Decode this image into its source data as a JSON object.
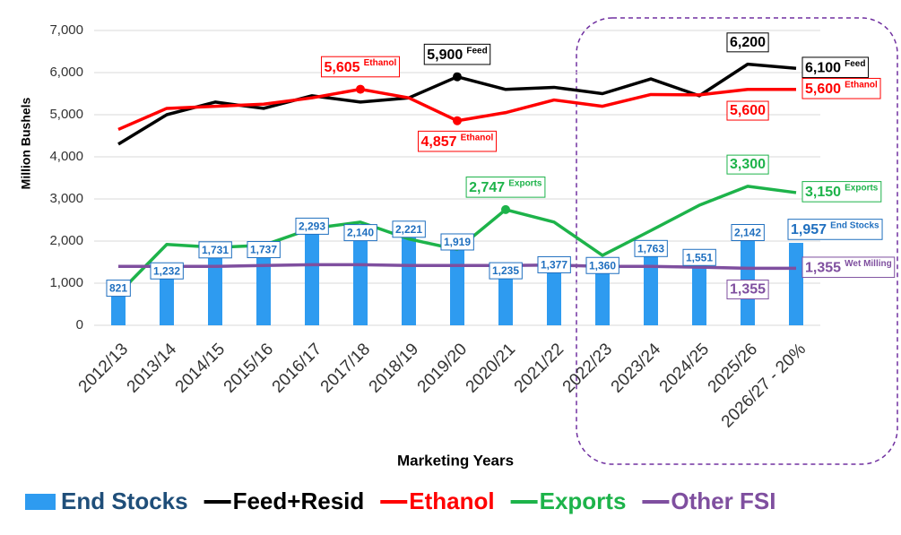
{
  "chart_data": {
    "type": "bar",
    "categories": [
      "2012/13",
      "2013/14",
      "2014/15",
      "2015/16",
      "2016/17",
      "2017/18",
      "2018/19",
      "2019/20",
      "2020/21",
      "2021/22",
      "2022/23",
      "2023/24",
      "2024/25",
      "2025/26",
      "2026/27 - 20%"
    ],
    "x_label": "Marketing Years",
    "y_label": "Million Bushels",
    "ylim": [
      0,
      7000
    ],
    "yticks": [
      0,
      {
        "value": 1000,
        "label": "1,000"
      },
      {
        "value": 2000,
        "label": "2,000"
      },
      {
        "value": 3000,
        "label": "3,000"
      },
      {
        "value": 4000,
        "label": "4,000"
      },
      {
        "value": 5000,
        "label": "5,000"
      },
      {
        "value": 6000,
        "label": "6,000"
      },
      {
        "value": 7000,
        "label": "7,000"
      }
    ],
    "grid": true,
    "series": [
      {
        "name": "End Stocks",
        "type": "bar",
        "color": "#2e9bf0",
        "values": [
          821,
          1232,
          1731,
          1737,
          2293,
          2140,
          2221,
          1919,
          1235,
          1377,
          1360,
          1763,
          1551,
          2142,
          1957
        ],
        "value_labels": [
          "821",
          "1,232",
          "1,731",
          "1,737",
          "2,293",
          "2,140",
          "2,221",
          "1,919",
          "1,235",
          "1,377",
          "1,360",
          "1,763",
          "1,551",
          "2,142",
          "1,957"
        ],
        "label_tags": [
          null,
          null,
          null,
          null,
          null,
          null,
          null,
          null,
          null,
          null,
          null,
          null,
          null,
          null,
          "End Stocks"
        ]
      },
      {
        "name": "Feed+Resid",
        "type": "line",
        "color": "#000000",
        "values": [
          4300,
          5000,
          5300,
          5150,
          5450,
          5300,
          5400,
          5900,
          5600,
          5650,
          5500,
          5850,
          5450,
          6200,
          6100
        ],
        "value_labels": [
          null,
          null,
          null,
          null,
          null,
          null,
          null,
          "5,900",
          null,
          null,
          null,
          null,
          null,
          "6,200",
          "6,100"
        ],
        "label_tags": [
          null,
          null,
          null,
          null,
          null,
          null,
          null,
          "Feed",
          null,
          null,
          null,
          null,
          null,
          null,
          "Feed"
        ]
      },
      {
        "name": "Ethanol",
        "type": "line",
        "color": "#ff0000",
        "values": [
          4650,
          5150,
          5200,
          5250,
          5400,
          5605,
          5400,
          4857,
          5050,
          5350,
          5200,
          5480,
          5470,
          5600,
          5600
        ],
        "value_labels": [
          null,
          null,
          null,
          null,
          null,
          "5,605",
          null,
          "4,857",
          null,
          null,
          null,
          null,
          null,
          "5,600",
          "5,600"
        ],
        "label_tags": [
          null,
          null,
          null,
          null,
          null,
          "Ethanol",
          null,
          "Ethanol",
          null,
          null,
          null,
          null,
          null,
          null,
          "Ethanol"
        ]
      },
      {
        "name": "Exports",
        "type": "line",
        "color": "#1db34a",
        "values": [
          750,
          1920,
          1850,
          1900,
          2300,
          2450,
          2050,
          1800,
          2747,
          2450,
          1660,
          2250,
          2850,
          3300,
          3150
        ],
        "value_labels": [
          null,
          null,
          null,
          null,
          null,
          null,
          null,
          null,
          "2,747",
          null,
          null,
          null,
          null,
          "3,300",
          "3,150"
        ],
        "label_tags": [
          null,
          null,
          null,
          null,
          null,
          null,
          null,
          null,
          "Exports",
          null,
          null,
          null,
          null,
          null,
          "Exports"
        ]
      },
      {
        "name": "Other FSI",
        "type": "line",
        "color": "#7f4f9f",
        "values": [
          1400,
          1400,
          1400,
          1420,
          1440,
          1440,
          1420,
          1420,
          1420,
          1430,
          1400,
          1400,
          1380,
          1355,
          1355
        ],
        "value_labels": [
          null,
          null,
          null,
          null,
          null,
          null,
          null,
          null,
          null,
          null,
          null,
          null,
          null,
          "1,355",
          "1,355"
        ],
        "label_tags": [
          null,
          null,
          null,
          null,
          null,
          null,
          null,
          null,
          null,
          null,
          null,
          null,
          null,
          null,
          "Wet Milling"
        ]
      }
    ]
  }
}
